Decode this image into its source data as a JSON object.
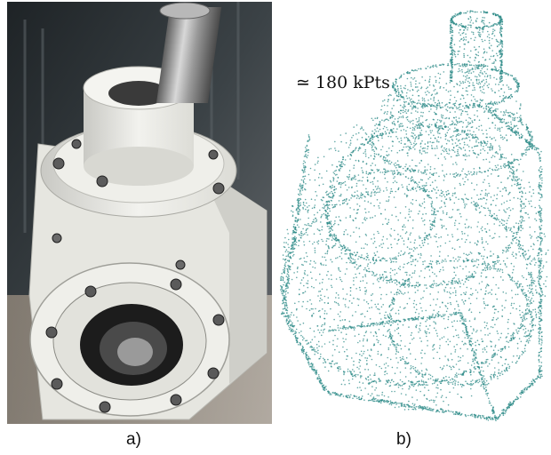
{
  "panels": [
    {
      "id": "a",
      "caption": "a)",
      "kind": "photograph"
    },
    {
      "id": "b",
      "caption": "b)",
      "kind": "point-cloud",
      "annotation": "180 kPts",
      "annotation_symbol": "≃"
    }
  ],
  "colors": {
    "point_cloud": "#2e8b88",
    "housing": "#eeeeea",
    "steel": "#8a8a8a",
    "background_photo": "#2e3336"
  }
}
